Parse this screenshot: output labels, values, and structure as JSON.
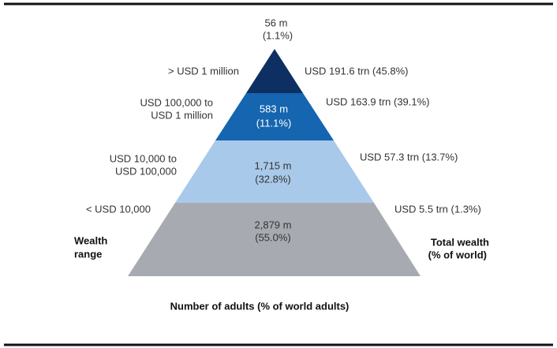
{
  "tiers": [
    {
      "wealth_range": [
        "> USD 1 million"
      ],
      "adults": "56 m",
      "share": "(1.1%)",
      "total_wealth": "USD 191.6 trn (45.8%)"
    },
    {
      "wealth_range": [
        "USD 100,000 to",
        "USD 1 million"
      ],
      "adults": "583 m",
      "share": "(11.1%)",
      "total_wealth": "USD 163.9 trn (39.1%)"
    },
    {
      "wealth_range": [
        "USD 10,000 to",
        "USD 100,000"
      ],
      "adults": "1,715 m",
      "share": "(32.8%)",
      "total_wealth": "USD 57.3 trn (13.7%)"
    },
    {
      "wealth_range": [
        "< USD 10,000"
      ],
      "adults": "2,879 m",
      "share": "(55.0%)",
      "total_wealth": "USD 5.5 trn (1.3%)"
    }
  ],
  "left_title": [
    "Wealth",
    "range"
  ],
  "right_title": [
    "Total wealth",
    "(% of world)"
  ],
  "footer": "Number of adults (% of world adults)"
}
